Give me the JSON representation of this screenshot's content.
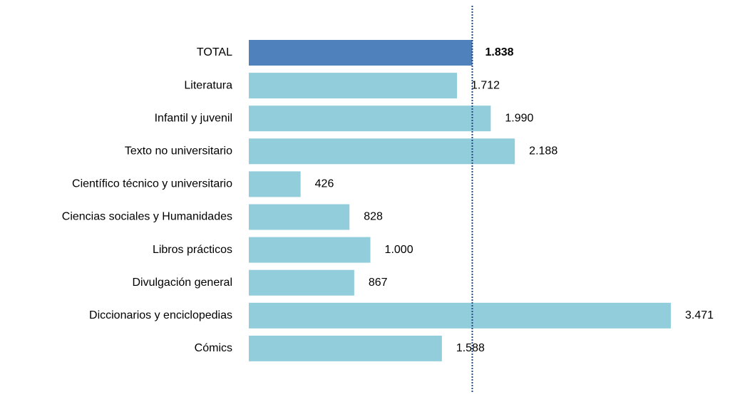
{
  "chart_data": {
    "type": "bar",
    "orientation": "horizontal",
    "categories": [
      "TOTAL",
      "Literatura",
      "Infantil y juvenil",
      "Texto no universitario",
      "Científico técnico y universitario",
      "Ciencias sociales y Humanidades",
      "Libros prácticos",
      "Divulgación general",
      "Diccionarios y enciclopedias",
      "Cómics"
    ],
    "values": [
      1838,
      1712,
      1990,
      2188,
      426,
      828,
      1000,
      867,
      3471,
      1588
    ],
    "value_labels": [
      "1.838",
      "1.712",
      "1.990",
      "2.188",
      "426",
      "828",
      "1.000",
      "867",
      "3.471",
      "1.588"
    ],
    "colors": [
      "#4f81bd",
      "#92cddc",
      "#92cddc",
      "#92cddc",
      "#92cddc",
      "#92cddc",
      "#92cddc",
      "#92cddc",
      "#92cddc",
      "#92cddc"
    ],
    "reference_line_color": "#1f497d"
  }
}
